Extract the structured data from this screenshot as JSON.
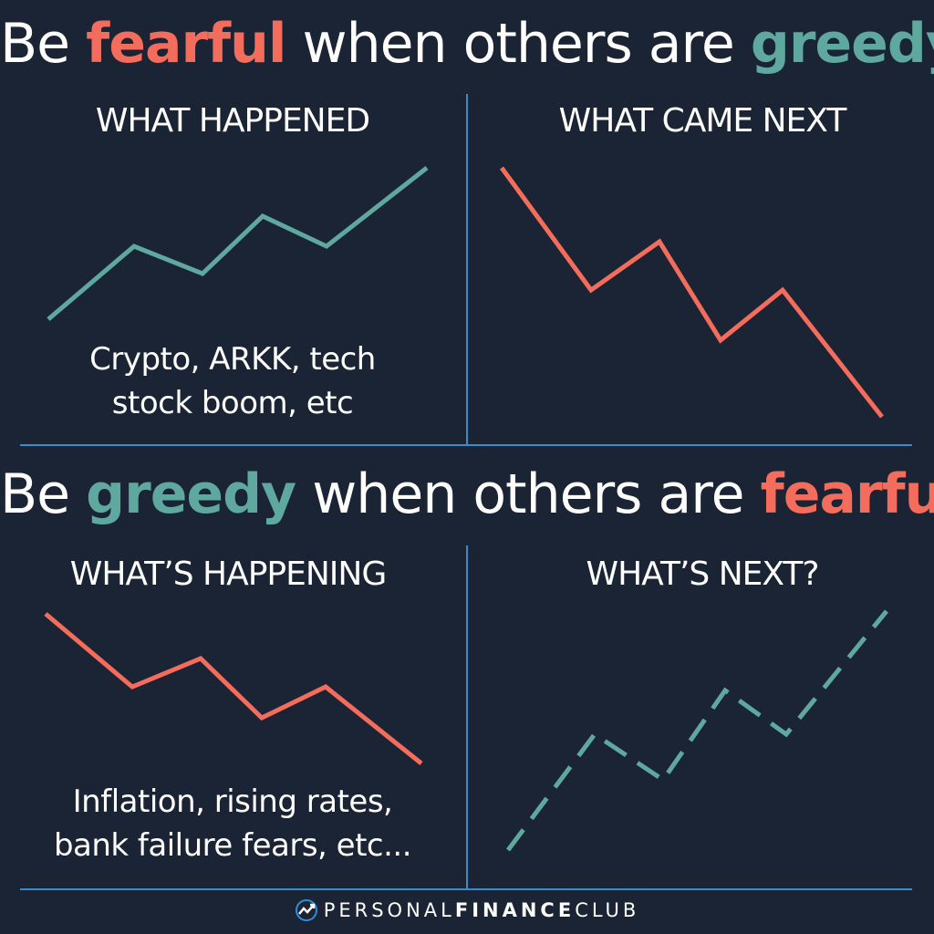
{
  "headline_top": {
    "pre": "Be ",
    "word1": "fearful",
    "mid": " when others are ",
    "word2": "greedy",
    "end": "."
  },
  "headline_bottom": {
    "pre": "Be ",
    "word1": "greedy",
    "mid": " when others are ",
    "word2": "fearful",
    "end": "."
  },
  "panels": {
    "top_left": {
      "label": "WHAT HAPPENED",
      "caption_line1": "Crypto, ARKK, tech",
      "caption_line2": "stock boom, etc"
    },
    "top_right": {
      "label": "WHAT CAME NEXT"
    },
    "bottom_left": {
      "label": "WHAT’S HAPPENING",
      "caption_line1": "Inflation, rising rates,",
      "caption_line2": "bank failure fears, etc..."
    },
    "bottom_right": {
      "label": "WHAT’S NEXT?"
    }
  },
  "footer": {
    "part1": "PERSONAL",
    "part2": "FINANCE",
    "part3": "CLUB"
  },
  "colors": {
    "background": "#1b2434",
    "red": "#f46c5b",
    "teal": "#5fa8a0",
    "divider": "#2e8fd6"
  }
}
